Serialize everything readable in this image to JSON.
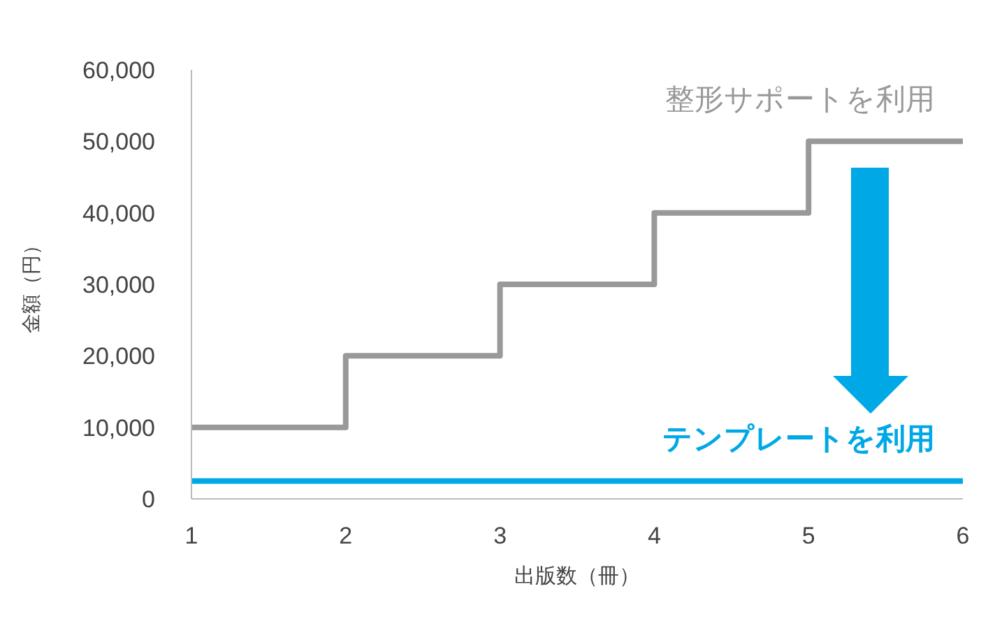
{
  "chart_data": {
    "type": "step",
    "xlabel": "出版数（冊）",
    "ylabel": "金額（円）",
    "x": [
      1,
      2,
      3,
      4,
      5,
      6
    ],
    "series": [
      {
        "name": "整形サポートを利用",
        "color": "#999999",
        "values": [
          10000,
          20000,
          30000,
          40000,
          50000,
          50000
        ]
      },
      {
        "name": "テンプレートを利用",
        "type": "line",
        "color": "#00a8e6",
        "values": [
          2500,
          2500,
          2500,
          2500,
          2500,
          2500
        ]
      }
    ],
    "xlim": [
      1,
      6
    ],
    "xticks": [
      1,
      2,
      3,
      4,
      5,
      6
    ],
    "ylim": [
      0,
      60000
    ],
    "yticks": [
      {
        "value": 0,
        "label": "0"
      },
      {
        "value": 10000,
        "label": "10,000"
      },
      {
        "value": 20000,
        "label": "20,000"
      },
      {
        "value": 30000,
        "label": "30,000"
      },
      {
        "value": 40000,
        "label": "40,000"
      },
      {
        "value": 50000,
        "label": "50,000"
      },
      {
        "value": 60000,
        "label": "60,000"
      }
    ],
    "marker": "none"
  }
}
